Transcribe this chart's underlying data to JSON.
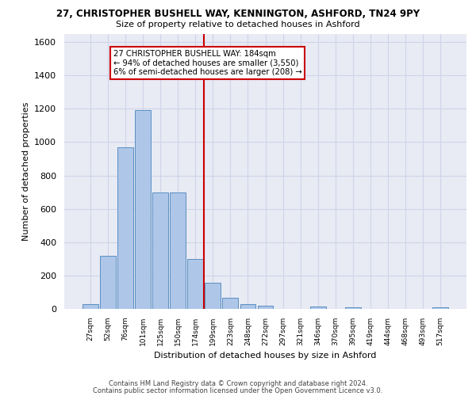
{
  "title_line1": "27, CHRISTOPHER BUSHELL WAY, KENNINGTON, ASHFORD, TN24 9PY",
  "title_line2": "Size of property relative to detached houses in Ashford",
  "xlabel": "Distribution of detached houses by size in Ashford",
  "ylabel": "Number of detached properties",
  "bin_labels": [
    "27sqm",
    "52sqm",
    "76sqm",
    "101sqm",
    "125sqm",
    "150sqm",
    "174sqm",
    "199sqm",
    "223sqm",
    "248sqm",
    "272sqm",
    "297sqm",
    "321sqm",
    "346sqm",
    "370sqm",
    "395sqm",
    "419sqm",
    "444sqm",
    "468sqm",
    "493sqm",
    "517sqm"
  ],
  "bar_heights": [
    30,
    320,
    970,
    1190,
    700,
    700,
    300,
    155,
    65,
    30,
    20,
    0,
    0,
    15,
    0,
    10,
    0,
    0,
    0,
    0,
    10
  ],
  "bar_color": "#aec6e8",
  "bar_edge_color": "#5a8fc2",
  "grid_color": "#d0d4e8",
  "background_color": "#e8eaf4",
  "ylim": [
    0,
    1650
  ],
  "yticks": [
    0,
    200,
    400,
    600,
    800,
    1000,
    1200,
    1400,
    1600
  ],
  "property_bin_index": 6,
  "vline_color": "#cc0000",
  "annotation_text": "27 CHRISTOPHER BUSHELL WAY: 184sqm\n← 94% of detached houses are smaller (3,550)\n6% of semi-detached houses are larger (208) →",
  "annotation_box_color": "#ffffff",
  "annotation_border_color": "#cc0000",
  "footer_line1": "Contains HM Land Registry data © Crown copyright and database right 2024.",
  "footer_line2": "Contains public sector information licensed under the Open Government Licence v3.0."
}
